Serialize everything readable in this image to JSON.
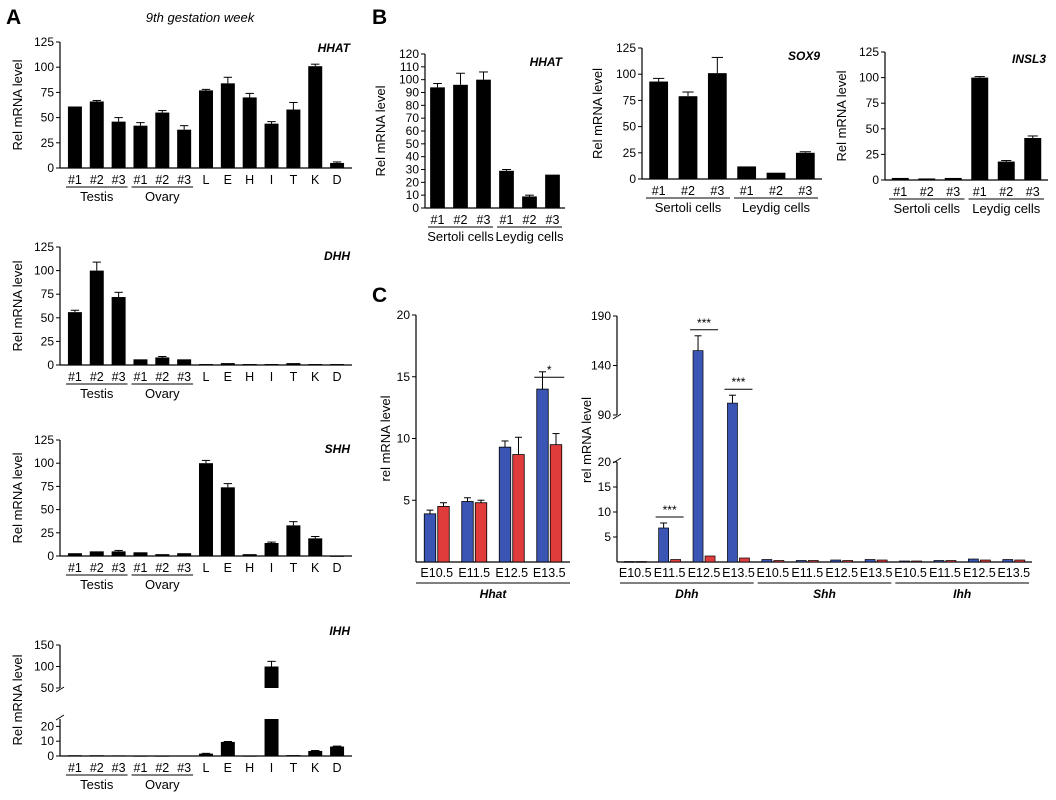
{
  "figure": {
    "panel_labels": [
      "A",
      "B",
      "C"
    ],
    "panel_a_subtitle": "9th gestation week"
  },
  "chart_data": [
    {
      "id": "A1",
      "type": "bar",
      "gene": "HHAT",
      "ylabel": "Rel mRNA level",
      "categories": [
        "#1",
        "#2",
        "#3",
        "#1",
        "#2",
        "#3",
        "L",
        "E",
        "H",
        "I",
        "T",
        "K",
        "D"
      ],
      "groups": [
        "Testis",
        "Ovary"
      ],
      "values": [
        61,
        66,
        46,
        42,
        55,
        38,
        77,
        84,
        70,
        44,
        58,
        101,
        5
      ],
      "errors": [
        0,
        1,
        4,
        3,
        2,
        4,
        1,
        6,
        4,
        2,
        7,
        2,
        1
      ],
      "ylim": [
        0,
        125
      ],
      "yticks": [
        0,
        25,
        50,
        75,
        100,
        125
      ]
    },
    {
      "id": "A2",
      "type": "bar",
      "gene": "DHH",
      "ylabel": "Rel mRNA level",
      "categories": [
        "#1",
        "#2",
        "#3",
        "#1",
        "#2",
        "#3",
        "L",
        "E",
        "H",
        "I",
        "T",
        "K",
        "D"
      ],
      "groups": [
        "Testis",
        "Ovary"
      ],
      "values": [
        56,
        100,
        72,
        6,
        8,
        6,
        1,
        2,
        1,
        1,
        2,
        1,
        1
      ],
      "errors": [
        2,
        9,
        5,
        0,
        1,
        0,
        0,
        0,
        0,
        0,
        0,
        0,
        0
      ],
      "ylim": [
        0,
        125
      ],
      "yticks": [
        0,
        25,
        50,
        75,
        100,
        125
      ]
    },
    {
      "id": "A3",
      "type": "bar",
      "gene": "SHH",
      "ylabel": "Rel mRNA level",
      "categories": [
        "#1",
        "#2",
        "#3",
        "#1",
        "#2",
        "#3",
        "L",
        "E",
        "H",
        "I",
        "T",
        "K",
        "D"
      ],
      "groups": [
        "Testis",
        "Ovary"
      ],
      "values": [
        3,
        5,
        5,
        4,
        2,
        3,
        100,
        74,
        2,
        14,
        33,
        19,
        0
      ],
      "errors": [
        0,
        0,
        1,
        0,
        0,
        0,
        3,
        4,
        0,
        1,
        4,
        2,
        0
      ],
      "ylim": [
        0,
        125
      ],
      "yticks": [
        0,
        25,
        50,
        75,
        100,
        125
      ]
    },
    {
      "id": "A4",
      "type": "bar",
      "gene": "IHH",
      "ylabel": "Rel mRNA level",
      "categories": [
        "#1",
        "#2",
        "#3",
        "#1",
        "#2",
        "#3",
        "L",
        "E",
        "H",
        "I",
        "T",
        "K",
        "D"
      ],
      "groups": [
        "Testis",
        "Ovary"
      ],
      "values": [
        0.5,
        0.5,
        0.4,
        0.1,
        0.1,
        0.2,
        1.6,
        9.5,
        0.1,
        100,
        0.6,
        3.4,
        6.4
      ],
      "errors": [
        0,
        0,
        0,
        0,
        0,
        0,
        0.2,
        0.3,
        0,
        12,
        0,
        0.3,
        0.3
      ],
      "axis_break": {
        "lower": [
          0,
          25
        ],
        "upper": [
          50,
          150
        ]
      },
      "yticks": [
        0,
        10,
        20,
        50,
        100,
        150
      ]
    },
    {
      "id": "B1",
      "type": "bar",
      "gene": "HHAT",
      "ylabel": "Rel mRNA level",
      "categories": [
        "#1",
        "#2",
        "#3",
        "#1",
        "#2",
        "#3"
      ],
      "groups": [
        "Sertoli cells",
        "Leydig cells"
      ],
      "values": [
        94,
        96,
        100,
        29,
        9,
        26
      ],
      "errors": [
        3,
        9,
        6,
        1,
        1,
        0
      ],
      "ylim": [
        0,
        120
      ],
      "yticks": [
        0,
        10,
        20,
        30,
        40,
        50,
        60,
        70,
        80,
        90,
        100,
        110,
        120
      ]
    },
    {
      "id": "B2",
      "type": "bar",
      "gene": "SOX9",
      "ylabel": "Rel mRNA level",
      "categories": [
        "#1",
        "#2",
        "#3",
        "#1",
        "#2",
        "#3"
      ],
      "groups": [
        "Sertoli cells",
        "Leydig cells"
      ],
      "values": [
        93,
        79,
        101,
        12,
        6,
        25
      ],
      "errors": [
        3,
        4,
        15,
        0,
        0,
        1
      ],
      "ylim": [
        0,
        125
      ],
      "yticks": [
        0,
        25,
        50,
        75,
        100,
        125
      ]
    },
    {
      "id": "B3",
      "type": "bar",
      "gene": "INSL3",
      "ylabel": "Rel mRNA level",
      "categories": [
        "#1",
        "#2",
        "#3",
        "#1",
        "#2",
        "#3"
      ],
      "groups": [
        "Sertoli cells",
        "Leydig cells"
      ],
      "values": [
        2,
        1.5,
        2,
        100,
        18,
        41
      ],
      "errors": [
        0,
        0,
        0,
        1,
        1,
        2
      ],
      "ylim": [
        0,
        125
      ],
      "yticks": [
        0,
        25,
        50,
        75,
        100,
        125
      ]
    },
    {
      "id": "C1",
      "type": "bar",
      "gene": "Hhat",
      "ylabel": "rel mRNA level",
      "categories": [
        "E10.5",
        "E11.5",
        "E12.5",
        "E13.5"
      ],
      "series": [
        {
          "color": "#3a55b4",
          "values": [
            3.9,
            4.9,
            9.3,
            14.0
          ],
          "errors": [
            0.3,
            0.3,
            0.5,
            1.4
          ]
        },
        {
          "color": "#e03c3c",
          "values": [
            4.5,
            4.8,
            8.7,
            9.5
          ],
          "errors": [
            0.3,
            0.2,
            1.4,
            0.9
          ]
        }
      ],
      "ylim": [
        0,
        20
      ],
      "yticks": [
        5,
        10,
        15,
        20
      ],
      "significance": [
        {
          "category": "E13.5",
          "label": "*"
        }
      ]
    },
    {
      "id": "C2",
      "type": "bar",
      "ylabel": "rel mRNA level",
      "genes": [
        "Dhh",
        "Shh",
        "Ihh"
      ],
      "categories": [
        "E10.5",
        "E11.5",
        "E12.5",
        "E13.5"
      ],
      "series_colors": [
        "#3a55b4",
        "#e03c3c"
      ],
      "data": {
        "Dhh": {
          "blue": [
            0.1,
            6.8,
            155,
            102
          ],
          "red": [
            0.1,
            0.5,
            1.2,
            0.8
          ],
          "blue_err": [
            0,
            1.0,
            15,
            8
          ],
          "red_err": [
            0,
            0,
            0,
            0
          ]
        },
        "Shh": {
          "blue": [
            0.5,
            0.3,
            0.4,
            0.5
          ],
          "red": [
            0.3,
            0.3,
            0.3,
            0.4
          ],
          "blue_err": [
            0,
            0,
            0,
            0
          ],
          "red_err": [
            0,
            0,
            0,
            0
          ]
        },
        "Ihh": {
          "blue": [
            0.2,
            0.3,
            0.6,
            0.5
          ],
          "red": [
            0.2,
            0.3,
            0.4,
            0.4
          ],
          "blue_err": [
            0,
            0,
            0,
            0
          ],
          "red_err": [
            0,
            0,
            0,
            0
          ]
        }
      },
      "axis_break": {
        "lower": [
          0,
          20
        ],
        "upper": [
          90,
          190
        ]
      },
      "yticks": [
        5,
        10,
        15,
        20,
        90,
        140,
        190
      ],
      "significance": [
        {
          "gene": "Dhh",
          "category": "E11.5",
          "label": "***"
        },
        {
          "gene": "Dhh",
          "category": "E12.5",
          "label": "***"
        },
        {
          "gene": "Dhh",
          "category": "E13.5",
          "label": "***"
        }
      ]
    }
  ]
}
